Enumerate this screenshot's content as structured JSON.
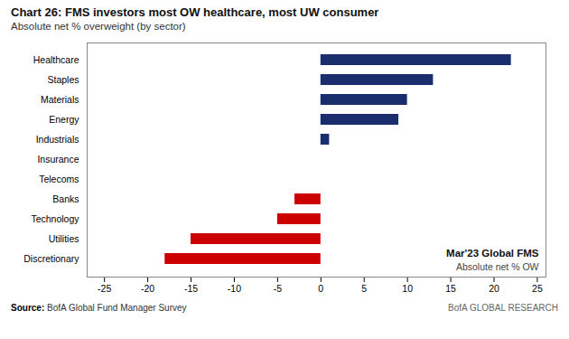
{
  "chart_data": {
    "type": "bar",
    "orientation": "horizontal",
    "title": "Chart 26: FMS investors most OW healthcare, most UW consumer",
    "subtitle": "Absolute net % overweight (by sector)",
    "categories": [
      "Healthcare",
      "Staples",
      "Materials",
      "Energy",
      "Industrials",
      "Insurance",
      "Telecoms",
      "Banks",
      "Technology",
      "Utilities",
      "Discretionary"
    ],
    "values": [
      22,
      13,
      10,
      9,
      1,
      0,
      0,
      -3,
      -5,
      -15,
      -18
    ],
    "colors": [
      "#1a2e6e",
      "#1a2e6e",
      "#1a2e6e",
      "#1a2e6e",
      "#1a2e6e",
      "#1a2e6e",
      "#1a2e6e",
      "#cc0000",
      "#cc0000",
      "#cc0000",
      "#cc0000"
    ],
    "xlim": [
      -27,
      26
    ],
    "xticks": [
      -25,
      -20,
      -15,
      -10,
      -5,
      0,
      5,
      10,
      15,
      20,
      25
    ],
    "annotations": [
      "Mar'23 Global FMS",
      "Absolute net % OW"
    ],
    "source": {
      "label": "Source:",
      "text": "BofA Global Fund Manager Survey"
    },
    "branding": "BofA GLOBAL RESEARCH",
    "grid": false
  }
}
